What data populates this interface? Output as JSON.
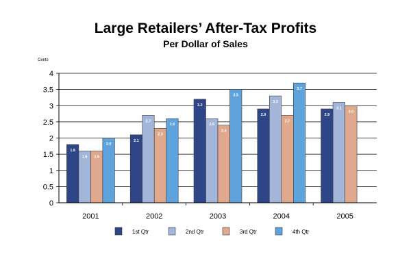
{
  "chart_data": {
    "type": "bar",
    "title": "Large Retailers’ After-Tax Profits",
    "subtitle": "Per Dollar of Sales",
    "ylabel": "Cents",
    "xlabel": "",
    "ylim": [
      0,
      4
    ],
    "yticks": [
      "0",
      "0.5",
      "1",
      "1.5",
      "2",
      "2.5",
      "3",
      "3.5",
      "4"
    ],
    "grid": "horizontal",
    "legend_position": "bottom",
    "categories": [
      "2001",
      "2002",
      "2003",
      "2004",
      "2005"
    ],
    "series": [
      {
        "name": "1st Qtr",
        "color": "#2e4688",
        "values": [
          1.8,
          2.1,
          3.2,
          2.9,
          2.9
        ],
        "labels": [
          "1.8",
          "2.1",
          "3.2",
          "2.9",
          "2.9"
        ]
      },
      {
        "name": "2nd Qtr",
        "color": "#a3b5d9",
        "values": [
          1.6,
          2.7,
          2.6,
          3.3,
          3.1
        ],
        "labels": [
          "1.6",
          "2.7",
          "2.6",
          "3.3",
          "3.1"
        ]
      },
      {
        "name": "3rd Qtr",
        "color": "#e0a98d",
        "values": [
          1.6,
          2.3,
          2.4,
          2.7,
          3.0
        ],
        "labels": [
          "1.6",
          "2.3",
          "2.4",
          "2.7",
          "3.0"
        ]
      },
      {
        "name": "4th Qtr",
        "color": "#5fa3dd",
        "values": [
          2.0,
          2.6,
          3.5,
          3.7,
          null
        ],
        "labels": [
          "2.0",
          "2.6",
          "3.5",
          "3.7",
          ""
        ]
      }
    ]
  }
}
